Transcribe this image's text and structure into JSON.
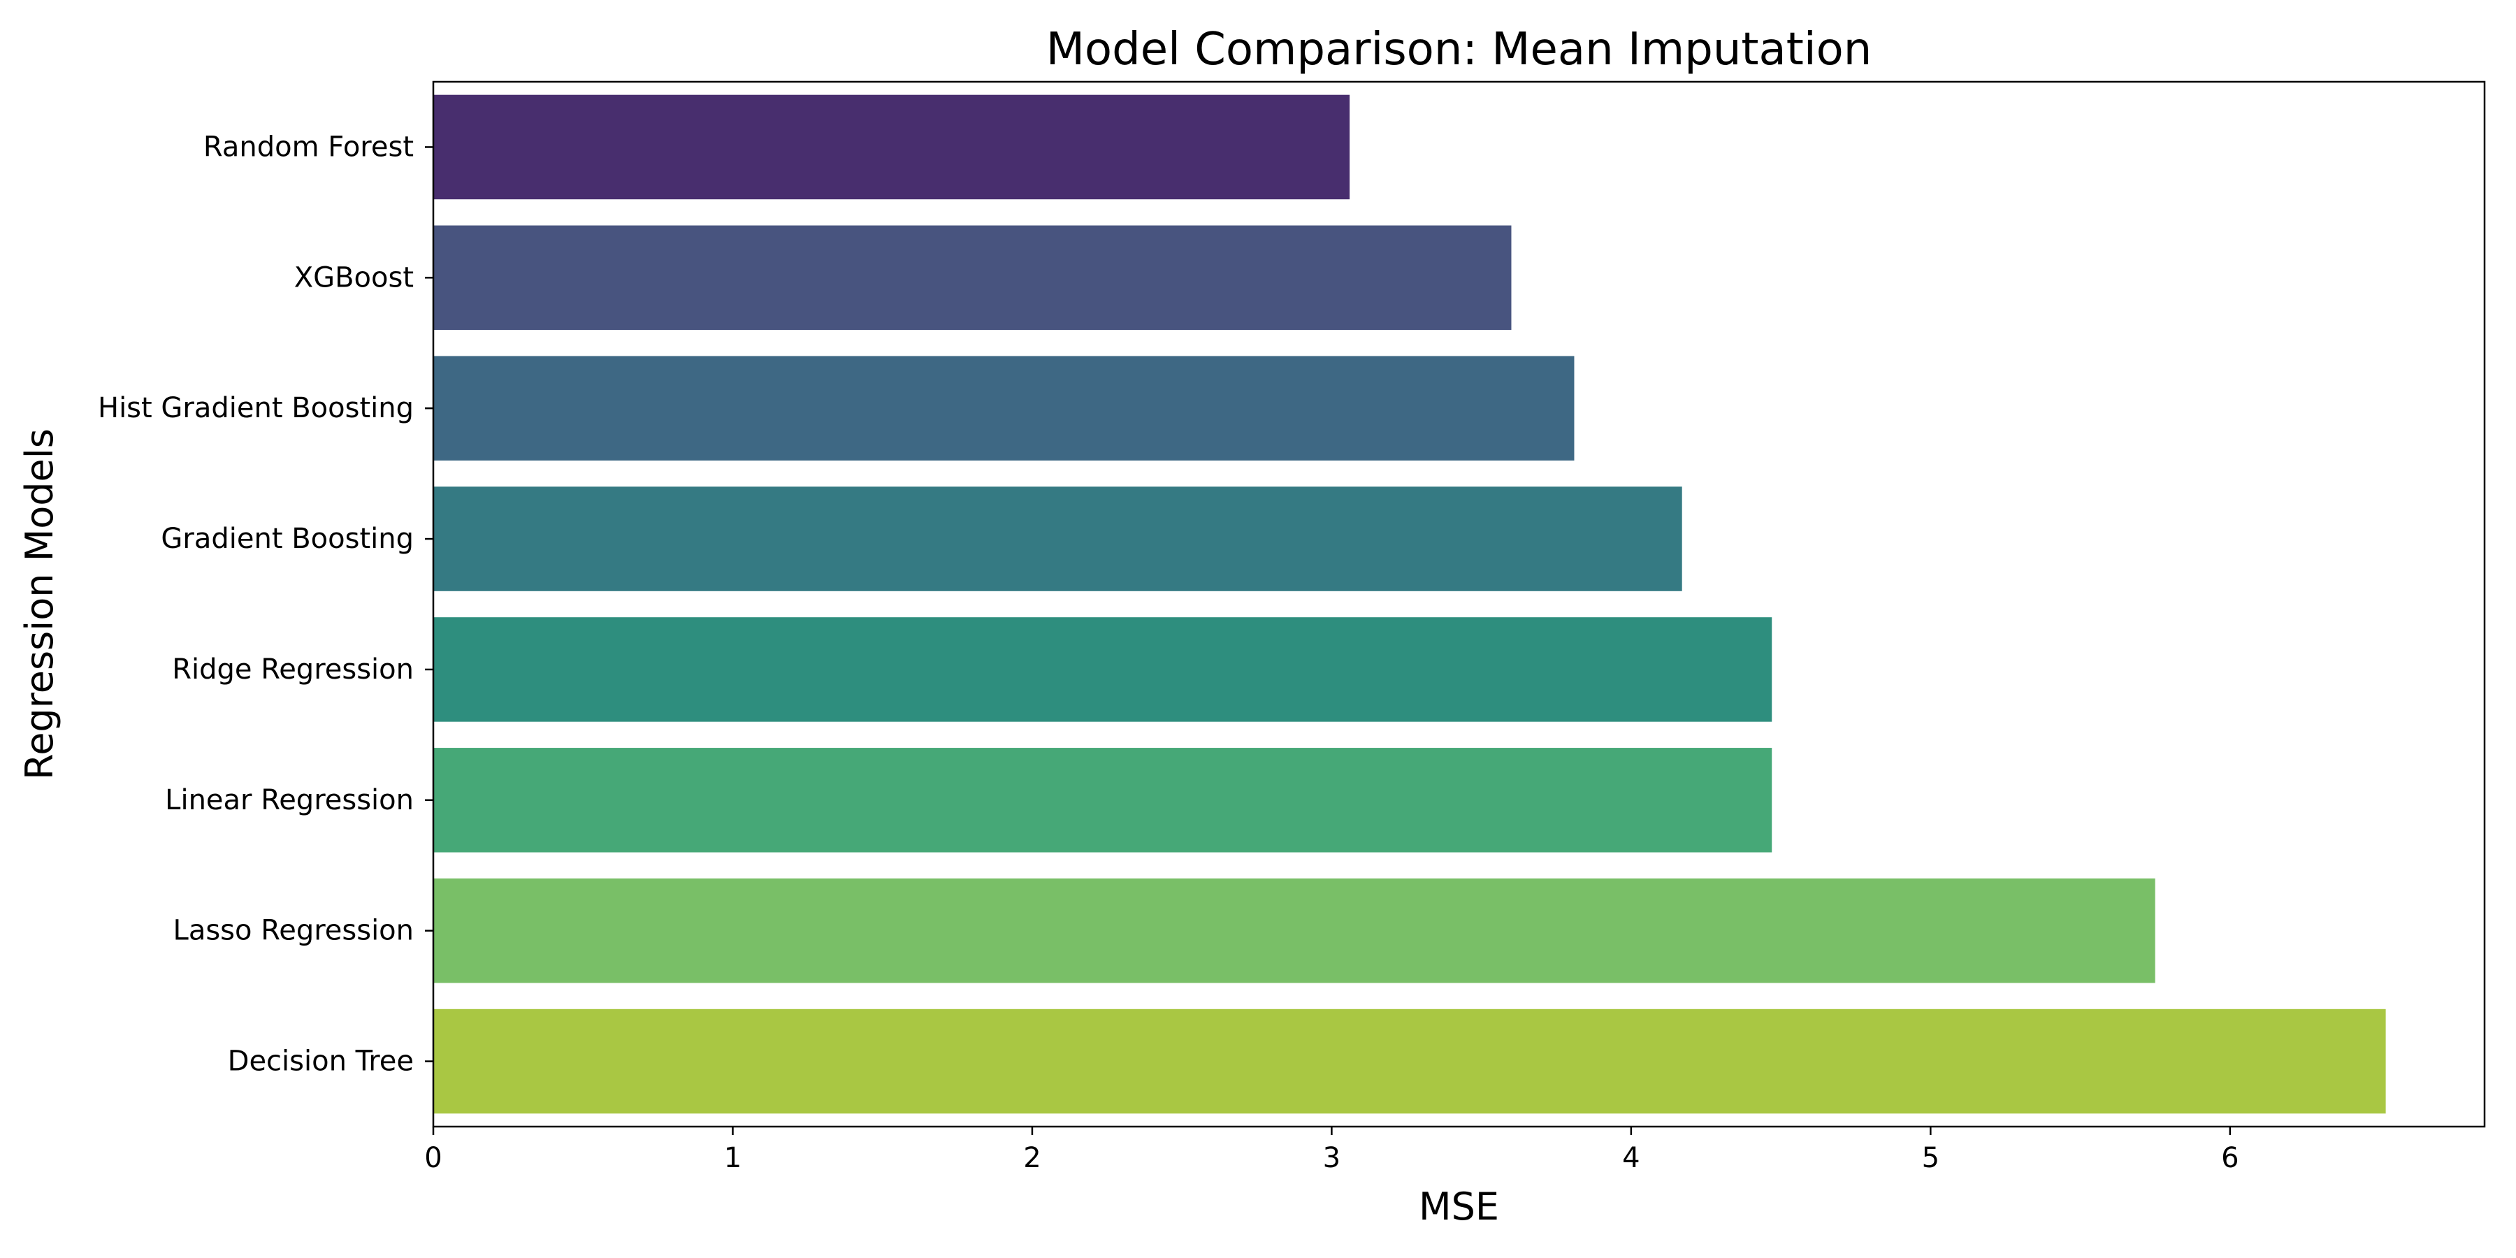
{
  "chart_data": {
    "type": "bar",
    "orientation": "horizontal",
    "title": "Model Comparison: Mean Imputation",
    "xlabel": "MSE",
    "ylabel": "Regression Models",
    "categories": [
      "Random Forest",
      "XGBoost",
      "Hist Gradient Boosting",
      "Gradient Boosting",
      "Ridge Regression",
      "Linear Regression",
      "Lasso Regression",
      "Decision Tree"
    ],
    "values": [
      3.06,
      3.6,
      3.81,
      4.17,
      4.47,
      4.47,
      5.75,
      6.52
    ],
    "colors": [
      "#482e6e",
      "#48547f",
      "#3e6884",
      "#357a83",
      "#2e8e7e",
      "#46a877",
      "#79bf67",
      "#a9c743"
    ],
    "xlim": [
      0,
      6.85
    ],
    "xticks": [
      0,
      1,
      2,
      3,
      4,
      5,
      6
    ],
    "grid": false,
    "legend": "none"
  }
}
